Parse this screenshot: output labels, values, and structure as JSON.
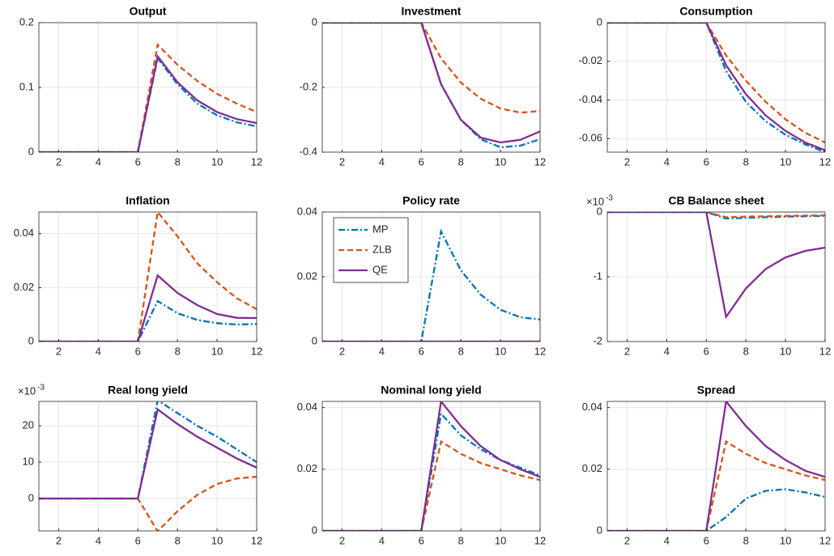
{
  "chart_data": [
    {
      "type": "line",
      "title": "Output",
      "x": [
        1,
        2,
        3,
        4,
        5,
        6,
        7,
        8,
        9,
        10,
        11,
        12
      ],
      "xlim": [
        1,
        12
      ],
      "xticks": [
        2,
        4,
        6,
        8,
        10,
        12
      ],
      "ylim": [
        0,
        0.2
      ],
      "yticks": [
        0,
        0.1,
        0.2
      ],
      "grid": true,
      "series": [
        {
          "name": "MP",
          "color": "#0072BD",
          "linestyle": "dashdot",
          "values": [
            0,
            0,
            0,
            0,
            0,
            0,
            0.145,
            0.105,
            0.075,
            0.057,
            0.046,
            0.04
          ]
        },
        {
          "name": "ZLB",
          "color": "#D95319",
          "linestyle": "dashed",
          "values": [
            0,
            0,
            0,
            0,
            0,
            0,
            0.166,
            0.135,
            0.11,
            0.09,
            0.075,
            0.062
          ]
        },
        {
          "name": "QE",
          "color": "#7E2F8E",
          "linestyle": "solid",
          "values": [
            0,
            0,
            0,
            0,
            0,
            0,
            0.148,
            0.108,
            0.08,
            0.062,
            0.051,
            0.045
          ]
        }
      ]
    },
    {
      "type": "line",
      "title": "Investment",
      "x": [
        1,
        2,
        3,
        4,
        5,
        6,
        7,
        8,
        9,
        10,
        11,
        12
      ],
      "xlim": [
        1,
        12
      ],
      "xticks": [
        2,
        4,
        6,
        8,
        10,
        12
      ],
      "ylim": [
        -0.4,
        0
      ],
      "yticks": [
        -0.4,
        -0.2,
        0
      ],
      "grid": true,
      "series": [
        {
          "name": "MP",
          "color": "#0072BD",
          "linestyle": "dashdot",
          "values": [
            0,
            0,
            0,
            0,
            0,
            0,
            -0.19,
            -0.3,
            -0.36,
            -0.385,
            -0.38,
            -0.36
          ]
        },
        {
          "name": "ZLB",
          "color": "#D95319",
          "linestyle": "dashed",
          "values": [
            0,
            0,
            0,
            0,
            0,
            0,
            -0.11,
            -0.185,
            -0.235,
            -0.265,
            -0.278,
            -0.273
          ]
        },
        {
          "name": "QE",
          "color": "#7E2F8E",
          "linestyle": "solid",
          "values": [
            0,
            0,
            0,
            0,
            0,
            0,
            -0.19,
            -0.3,
            -0.355,
            -0.37,
            -0.362,
            -0.336
          ]
        }
      ]
    },
    {
      "type": "line",
      "title": "Consumption",
      "x": [
        1,
        2,
        3,
        4,
        5,
        6,
        7,
        8,
        9,
        10,
        11,
        12
      ],
      "xlim": [
        1,
        12
      ],
      "xticks": [
        2,
        4,
        6,
        8,
        10,
        12
      ],
      "ylim": [
        -0.067,
        0
      ],
      "yticks": [
        -0.06,
        -0.04,
        -0.02,
        0
      ],
      "grid": true,
      "series": [
        {
          "name": "MP",
          "color": "#0072BD",
          "linestyle": "dashdot",
          "values": [
            0,
            0,
            0,
            0,
            0,
            0,
            -0.025,
            -0.041,
            -0.051,
            -0.058,
            -0.063,
            -0.067
          ]
        },
        {
          "name": "ZLB",
          "color": "#D95319",
          "linestyle": "dashed",
          "values": [
            0,
            0,
            0,
            0,
            0,
            0,
            -0.017,
            -0.03,
            -0.041,
            -0.05,
            -0.057,
            -0.062
          ]
        },
        {
          "name": "QE",
          "color": "#7E2F8E",
          "linestyle": "solid",
          "values": [
            0,
            0,
            0,
            0,
            0,
            0,
            -0.022,
            -0.037,
            -0.048,
            -0.056,
            -0.062,
            -0.066
          ]
        }
      ]
    },
    {
      "type": "line",
      "title": "Inflation",
      "x": [
        1,
        2,
        3,
        4,
        5,
        6,
        7,
        8,
        9,
        10,
        11,
        12
      ],
      "xlim": [
        1,
        12
      ],
      "xticks": [
        2,
        4,
        6,
        8,
        10,
        12
      ],
      "ylim": [
        0,
        0.048
      ],
      "yticks": [
        0,
        0.02,
        0.04
      ],
      "grid": true,
      "series": [
        {
          "name": "MP",
          "color": "#0072BD",
          "linestyle": "dashdot",
          "values": [
            0,
            0,
            0,
            0,
            0,
            0,
            0.015,
            0.0105,
            0.008,
            0.0068,
            0.0063,
            0.0065
          ]
        },
        {
          "name": "ZLB",
          "color": "#D95319",
          "linestyle": "dashed",
          "values": [
            0,
            0,
            0,
            0,
            0,
            0,
            0.048,
            0.039,
            0.029,
            0.022,
            0.016,
            0.012
          ]
        },
        {
          "name": "QE",
          "color": "#7E2F8E",
          "linestyle": "solid",
          "values": [
            0,
            0,
            0,
            0,
            0,
            0,
            0.0245,
            0.018,
            0.0135,
            0.0102,
            0.0088,
            0.0087
          ]
        }
      ]
    },
    {
      "type": "line",
      "title": "Policy rate",
      "x": [
        1,
        2,
        3,
        4,
        5,
        6,
        7,
        8,
        9,
        10,
        11,
        12
      ],
      "xlim": [
        1,
        12
      ],
      "xticks": [
        2,
        4,
        6,
        8,
        10,
        12
      ],
      "ylim": [
        0,
        0.04
      ],
      "yticks": [
        0,
        0.02,
        0.04
      ],
      "grid": true,
      "legend": "upper left",
      "series": [
        {
          "name": "MP",
          "color": "#0072BD",
          "linestyle": "dashdot",
          "values": [
            0,
            0,
            0,
            0,
            0,
            0,
            0.034,
            0.022,
            0.0145,
            0.0098,
            0.0075,
            0.0068
          ]
        },
        {
          "name": "ZLB",
          "color": "#D95319",
          "linestyle": "dashed",
          "values": [
            0,
            0,
            0,
            0,
            0,
            0,
            0,
            0,
            0,
            0,
            0,
            0
          ]
        },
        {
          "name": "QE",
          "color": "#7E2F8E",
          "linestyle": "solid",
          "values": [
            0,
            0,
            0,
            0,
            0,
            0,
            0,
            0,
            0,
            0,
            0,
            0
          ]
        }
      ]
    },
    {
      "type": "line",
      "title": "CB Balance sheet",
      "x": [
        1,
        2,
        3,
        4,
        5,
        6,
        7,
        8,
        9,
        10,
        11,
        12
      ],
      "xlim": [
        1,
        12
      ],
      "xticks": [
        2,
        4,
        6,
        8,
        10,
        12
      ],
      "ylim": [
        -2,
        0
      ],
      "yticks": [
        -2,
        -1,
        0
      ],
      "grid": true,
      "yexponent": {
        "base": "×10",
        "power": "-3"
      },
      "series": [
        {
          "name": "MP",
          "color": "#0072BD",
          "linestyle": "dashdot",
          "values": [
            0,
            0,
            0,
            0,
            0,
            0,
            -0.1,
            -0.09,
            -0.08,
            -0.07,
            -0.065,
            -0.06
          ]
        },
        {
          "name": "ZLB",
          "color": "#D95319",
          "linestyle": "dashed",
          "values": [
            0,
            0,
            0,
            0,
            0,
            0,
            -0.08,
            -0.07,
            -0.065,
            -0.06,
            -0.055,
            -0.05
          ]
        },
        {
          "name": "QE",
          "color": "#7E2F8E",
          "linestyle": "solid",
          "values": [
            0,
            0,
            0,
            0,
            0,
            0,
            -1.62,
            -1.18,
            -0.88,
            -0.7,
            -0.6,
            -0.55
          ]
        }
      ]
    },
    {
      "type": "line",
      "title": "Real long yield",
      "x": [
        1,
        2,
        3,
        4,
        5,
        6,
        7,
        8,
        9,
        10,
        11,
        12
      ],
      "xlim": [
        1,
        12
      ],
      "xticks": [
        2,
        4,
        6,
        8,
        10,
        12
      ],
      "ylim": [
        -8.9,
        26.7
      ],
      "yticks": [
        0,
        10,
        20
      ],
      "grid": true,
      "yexponent": {
        "base": "×10",
        "power": "-3"
      },
      "series": [
        {
          "name": "MP",
          "color": "#0072BD",
          "linestyle": "dashdot",
          "values": [
            0,
            0,
            0,
            0,
            0,
            0,
            27,
            23.5,
            20,
            17,
            13.5,
            10
          ]
        },
        {
          "name": "ZLB",
          "color": "#D95319",
          "linestyle": "dashed",
          "values": [
            0,
            0,
            0,
            0,
            0,
            0,
            -9,
            -3.5,
            1,
            4,
            5.5,
            6
          ]
        },
        {
          "name": "QE",
          "color": "#7E2F8E",
          "linestyle": "solid",
          "values": [
            0,
            0,
            0,
            0,
            0,
            0,
            24.5,
            20.5,
            17,
            14,
            11,
            8.5
          ]
        }
      ]
    },
    {
      "type": "line",
      "title": "Nominal long yield",
      "x": [
        1,
        2,
        3,
        4,
        5,
        6,
        7,
        8,
        9,
        10,
        11,
        12
      ],
      "xlim": [
        1,
        12
      ],
      "xticks": [
        2,
        4,
        6,
        8,
        10,
        12
      ],
      "ylim": [
        0,
        0.042
      ],
      "yticks": [
        0,
        0.02,
        0.04
      ],
      "grid": true,
      "series": [
        {
          "name": "MP",
          "color": "#0072BD",
          "linestyle": "dashdot",
          "values": [
            0,
            0,
            0,
            0,
            0,
            0,
            0.038,
            0.031,
            0.0265,
            0.023,
            0.0205,
            0.018
          ]
        },
        {
          "name": "ZLB",
          "color": "#D95319",
          "linestyle": "dashed",
          "values": [
            0,
            0,
            0,
            0,
            0,
            0,
            0.029,
            0.025,
            0.022,
            0.02,
            0.018,
            0.0165
          ]
        },
        {
          "name": "QE",
          "color": "#7E2F8E",
          "linestyle": "solid",
          "values": [
            0,
            0,
            0,
            0,
            0,
            0,
            0.042,
            0.034,
            0.0275,
            0.023,
            0.02,
            0.0175
          ]
        }
      ]
    },
    {
      "type": "line",
      "title": "Spread",
      "x": [
        1,
        2,
        3,
        4,
        5,
        6,
        7,
        8,
        9,
        10,
        11,
        12
      ],
      "xlim": [
        1,
        12
      ],
      "xticks": [
        2,
        4,
        6,
        8,
        10,
        12
      ],
      "ylim": [
        0,
        0.042
      ],
      "yticks": [
        0,
        0.02,
        0.04
      ],
      "grid": true,
      "series": [
        {
          "name": "MP",
          "color": "#0072BD",
          "linestyle": "dashdot",
          "values": [
            0,
            0,
            0,
            0,
            0,
            0,
            0.0045,
            0.0105,
            0.013,
            0.0135,
            0.0125,
            0.011
          ]
        },
        {
          "name": "ZLB",
          "color": "#D95319",
          "linestyle": "dashed",
          "values": [
            0,
            0,
            0,
            0,
            0,
            0,
            0.029,
            0.025,
            0.022,
            0.02,
            0.018,
            0.0165
          ]
        },
        {
          "name": "QE",
          "color": "#7E2F8E",
          "linestyle": "solid",
          "values": [
            0,
            0,
            0,
            0,
            0,
            0,
            0.042,
            0.034,
            0.0275,
            0.023,
            0.0195,
            0.0175
          ]
        }
      ]
    }
  ]
}
